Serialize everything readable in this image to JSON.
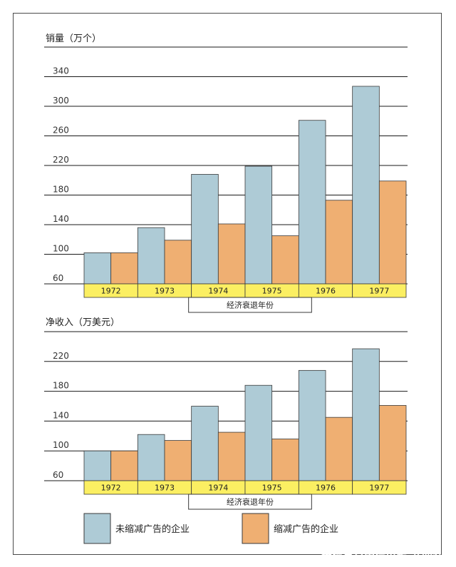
{
  "chart_data": [
    {
      "type": "bar",
      "title": "销量（万个）",
      "categories": [
        "1972",
        "1973",
        "1974",
        "1975",
        "1976",
        "1977"
      ],
      "series": [
        {
          "name": "未缩减广告的企业",
          "values": [
            102,
            136,
            208,
            219,
            281,
            327
          ]
        },
        {
          "name": "缩减广告的企业",
          "values": [
            102,
            119,
            141,
            125,
            173,
            199
          ]
        }
      ],
      "yticks": [
        60,
        100,
        140,
        180,
        220,
        260,
        300,
        340
      ],
      "ylim": [
        60,
        380
      ],
      "recession_years": [
        "1974",
        "1975"
      ],
      "recession_label": "经济衰退年份",
      "grid": true
    },
    {
      "type": "bar",
      "title": "净收入（万美元）",
      "categories": [
        "1972",
        "1973",
        "1974",
        "1975",
        "1976",
        "1977"
      ],
      "series": [
        {
          "name": "未缩减广告的企业",
          "values": [
            100,
            122,
            160,
            188,
            208,
            237
          ]
        },
        {
          "name": "缩减广告的企业",
          "values": [
            100,
            114,
            125,
            116,
            145,
            161
          ]
        }
      ],
      "yticks": [
        60,
        100,
        140,
        180,
        220
      ],
      "ylim": [
        60,
        260
      ],
      "recession_years": [
        "1974",
        "1975"
      ],
      "recession_label": "经济衰退年份",
      "grid": true
    }
  ],
  "legend": [
    {
      "label": "未缩减广告的企业",
      "color": "#aecbd6"
    },
    {
      "label": "缩减广告的企业",
      "color": "#efaf72"
    }
  ],
  "colors": {
    "blue": "#aecbd6",
    "orange": "#efaf72",
    "year_band": "#fbef62",
    "grid": "#1a1a1a",
    "bar_stroke": "#3a3a3a"
  },
  "watermark": "搜狐号@中信出版·商业社"
}
